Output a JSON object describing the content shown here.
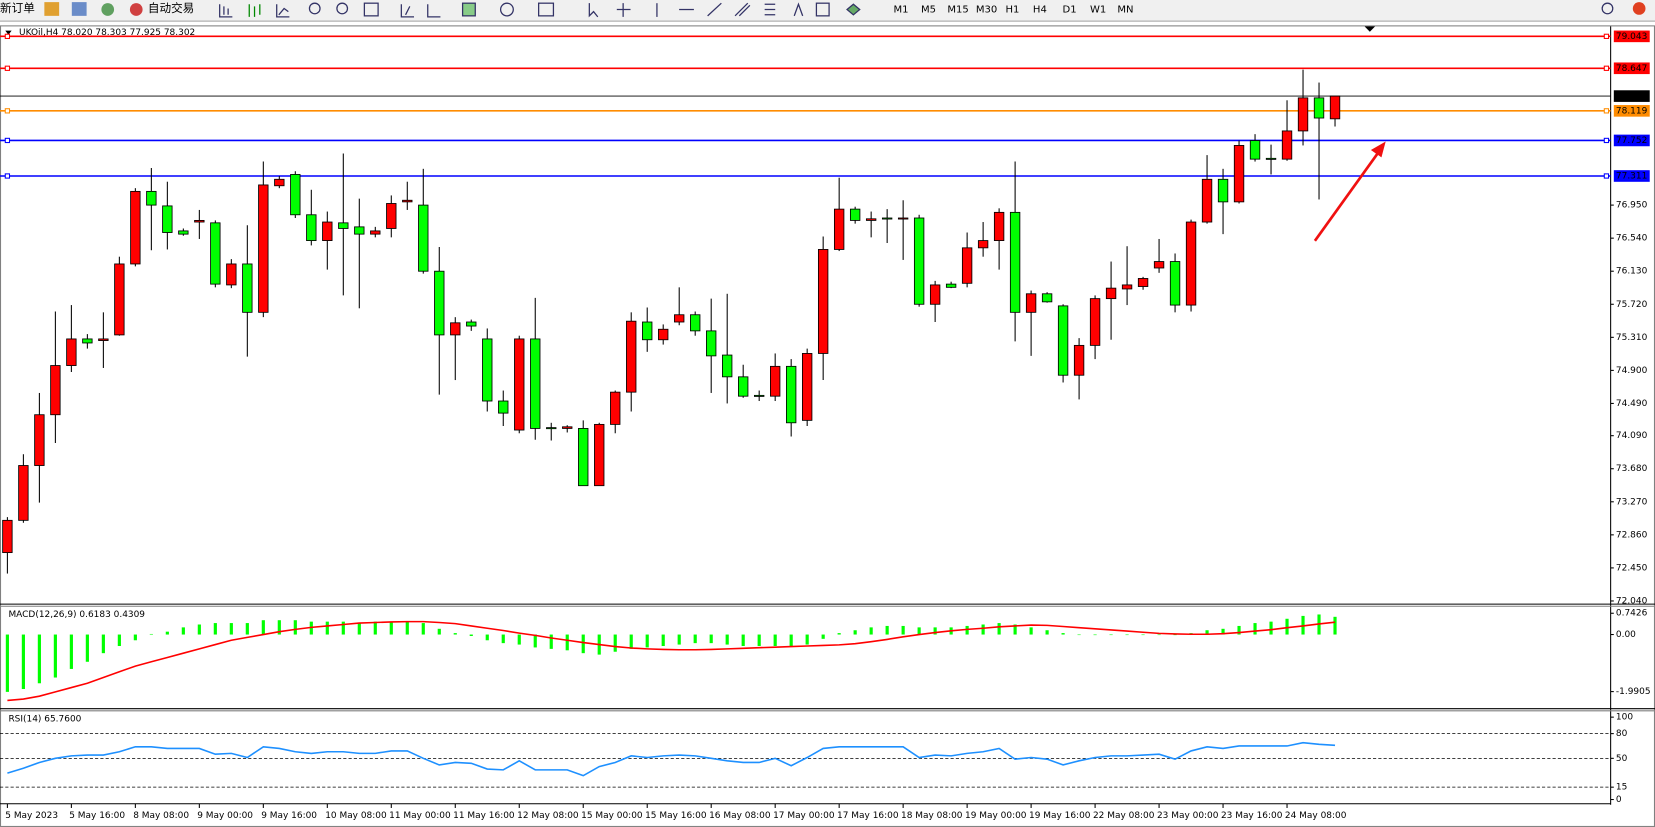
{
  "toolbar": {
    "new_order": "新订单",
    "auto_trading": "自动交易",
    "timeframes": [
      "M1",
      "M5",
      "M15",
      "M30",
      "H1",
      "H4",
      "D1",
      "W1",
      "MN"
    ]
  },
  "chart_data": [
    {
      "type": "candlestick",
      "title": "UKOil,H4  78.020 78.303 77.925 78.302",
      "categories": [
        "5 May 2023",
        null,
        null,
        null,
        "5 May 16:00",
        null,
        null,
        null,
        "8 May 08:00",
        null,
        null,
        null,
        "9 May 00:00",
        null,
        null,
        null,
        "9 May 16:00",
        null,
        null,
        null,
        "10 May 08:00",
        null,
        null,
        null,
        "11 May 00:00",
        null,
        null,
        null,
        "11 May 16:00",
        null,
        null,
        null,
        "12 May 08:00",
        null,
        null,
        null,
        "15 May 00:00",
        null,
        null,
        null,
        "15 May 16:00",
        null,
        null,
        null,
        "16 May 08:00",
        null,
        null,
        null,
        "17 May 00:00",
        null,
        null,
        null,
        "17 May 16:00",
        null,
        null,
        null,
        "18 May 08:00",
        null,
        null,
        null,
        "19 May 00:00",
        null,
        null,
        null,
        "19 May 16:00",
        null,
        null,
        null,
        "22 May 08:00",
        null,
        null,
        null,
        "23 May 00:00",
        null,
        null,
        null,
        "23 May 16:00",
        null,
        null,
        null,
        "24 May 08:00",
        null,
        null,
        null
      ],
      "open": [
        72.64,
        73.04,
        73.72,
        74.35,
        74.96,
        75.29,
        75.27,
        75.34,
        76.22,
        77.12,
        76.94,
        76.63,
        76.74,
        76.73,
        75.96,
        76.22,
        75.62,
        77.19,
        77.33,
        76.83,
        76.51,
        76.73,
        76.68,
        76.59,
        76.66,
        76.99,
        76.95,
        76.13,
        75.34,
        75.5,
        75.29,
        74.52,
        74.16,
        75.29,
        74.19,
        74.18,
        74.18,
        73.47,
        74.23,
        74.63,
        75.5,
        75.28,
        75.5,
        75.59,
        75.39,
        75.09,
        74.82,
        74.59,
        74.58,
        74.95,
        74.28,
        75.11,
        76.4,
        76.9,
        76.76,
        76.79,
        76.78,
        76.79,
        75.72,
        75.97,
        75.98,
        76.42,
        76.51,
        76.86,
        75.62,
        75.85,
        75.7,
        74.84,
        75.21,
        75.79,
        75.91,
        75.94,
        76.17,
        76.25,
        75.71,
        76.74,
        77.27,
        76.99,
        77.75,
        77.53,
        77.52,
        77.87,
        78.28,
        78.02
      ],
      "high": [
        73.08,
        73.86,
        74.62,
        75.63,
        75.71,
        75.35,
        75.62,
        76.31,
        77.16,
        77.41,
        77.24,
        76.66,
        76.89,
        76.76,
        76.28,
        76.7,
        77.49,
        77.31,
        77.37,
        77.14,
        76.87,
        77.59,
        77.03,
        76.68,
        77.07,
        77.24,
        77.4,
        76.43,
        75.56,
        75.53,
        75.42,
        74.65,
        75.33,
        75.8,
        74.25,
        74.22,
        74.28,
        74.25,
        74.65,
        75.62,
        75.68,
        75.47,
        75.93,
        75.63,
        75.79,
        75.85,
        74.97,
        74.65,
        75.11,
        75.04,
        75.17,
        76.56,
        77.29,
        76.93,
        76.87,
        76.9,
        77.01,
        76.83,
        76.01,
        76.0,
        76.61,
        76.74,
        76.91,
        77.49,
        75.89,
        75.87,
        75.72,
        75.3,
        75.83,
        76.25,
        76.44,
        76.06,
        76.53,
        76.35,
        76.77,
        77.57,
        77.4,
        77.75,
        77.83,
        77.7,
        78.25,
        78.63,
        78.47,
        78.303
      ],
      "low": [
        72.38,
        73.01,
        73.26,
        74.0,
        74.88,
        75.17,
        74.93,
        75.33,
        76.19,
        76.39,
        76.4,
        76.57,
        76.53,
        75.93,
        75.92,
        75.07,
        75.56,
        77.16,
        76.79,
        76.45,
        76.15,
        75.83,
        75.67,
        76.55,
        76.55,
        76.89,
        76.1,
        74.6,
        74.78,
        75.39,
        74.39,
        74.21,
        74.12,
        74.04,
        74.03,
        74.13,
        73.47,
        73.47,
        74.12,
        74.39,
        75.13,
        75.22,
        75.46,
        75.33,
        74.62,
        74.49,
        74.56,
        74.52,
        74.52,
        74.08,
        74.21,
        74.78,
        76.38,
        76.72,
        76.55,
        76.48,
        76.27,
        75.69,
        75.5,
        75.92,
        75.93,
        76.31,
        76.15,
        75.26,
        75.08,
        75.74,
        74.75,
        74.54,
        75.04,
        75.28,
        75.71,
        75.9,
        76.11,
        75.62,
        75.63,
        76.72,
        76.59,
        76.97,
        77.49,
        77.33,
        77.5,
        77.69,
        77.02,
        77.925
      ],
      "close": [
        73.04,
        73.72,
        74.35,
        74.96,
        75.29,
        75.24,
        75.29,
        76.22,
        77.12,
        76.95,
        76.61,
        76.59,
        76.76,
        75.97,
        76.22,
        75.62,
        77.2,
        77.27,
        76.83,
        76.51,
        76.74,
        76.66,
        76.59,
        76.63,
        76.97,
        77.01,
        76.13,
        75.34,
        75.49,
        75.45,
        74.52,
        74.37,
        75.29,
        74.18,
        74.18,
        74.2,
        73.47,
        74.23,
        74.63,
        75.51,
        75.28,
        75.41,
        75.59,
        75.39,
        75.08,
        74.82,
        74.58,
        74.58,
        74.95,
        74.25,
        75.11,
        76.4,
        76.9,
        76.76,
        76.78,
        76.78,
        76.79,
        75.72,
        75.96,
        75.93,
        76.42,
        76.51,
        76.86,
        75.62,
        75.85,
        75.75,
        74.84,
        75.21,
        75.79,
        75.92,
        75.96,
        76.04,
        76.25,
        75.71,
        76.74,
        77.27,
        76.99,
        77.69,
        77.52,
        77.52,
        77.87,
        78.28,
        78.03,
        78.302
      ],
      "up_color": "#ff0000",
      "down_color": "#00ff00",
      "ylim": [
        72.04,
        79.14
      ],
      "yticks": [
        {
          "value": 76.95,
          "label": "76.950"
        },
        {
          "value": 76.54,
          "label": "76.540"
        },
        {
          "value": 76.13,
          "label": "76.130"
        },
        {
          "value": 75.72,
          "label": "75.720"
        },
        {
          "value": 75.31,
          "label": "75.310"
        },
        {
          "value": 74.9,
          "label": "74.900"
        },
        {
          "value": 74.49,
          "label": "74.490"
        },
        {
          "value": 74.09,
          "label": "74.090"
        },
        {
          "value": 73.68,
          "label": "73.680"
        },
        {
          "value": 73.27,
          "label": "73.270"
        },
        {
          "value": 72.86,
          "label": "72.860"
        },
        {
          "value": 72.45,
          "label": "72.450"
        },
        {
          "value": 72.04,
          "label": "72.040"
        }
      ],
      "levels": [
        {
          "value": 79.043,
          "color": "#ff0000"
        },
        {
          "value": 78.647,
          "color": "#ff0000"
        },
        {
          "value": 78.119,
          "color": "#ff8c00"
        },
        {
          "value": 77.752,
          "color": "#0000ff"
        },
        {
          "value": 77.311,
          "color": "#0000ff"
        }
      ],
      "current_price": 78.302
    },
    {
      "type": "macd",
      "title": "MACD(12,26,9) 0.6183 0.4309",
      "series": [
        {
          "color": "#00ff00",
          "style": "bar",
          "values": [
            -2.0,
            -1.9,
            -1.7,
            -1.5,
            -1.2,
            -0.95,
            -0.65,
            -0.4,
            -0.2,
            0.02,
            0.1,
            0.25,
            0.35,
            0.4,
            0.4,
            0.4,
            0.5,
            0.5,
            0.5,
            0.45,
            0.45,
            0.45,
            0.42,
            0.45,
            0.45,
            0.45,
            0.4,
            0.2,
            0.05,
            -0.05,
            -0.2,
            -0.3,
            -0.35,
            -0.45,
            -0.5,
            -0.55,
            -0.65,
            -0.7,
            -0.6,
            -0.5,
            -0.45,
            -0.4,
            -0.35,
            -0.3,
            -0.3,
            -0.35,
            -0.4,
            -0.4,
            -0.4,
            -0.42,
            -0.35,
            -0.15,
            0.05,
            0.15,
            0.25,
            0.3,
            0.3,
            0.25,
            0.25,
            0.25,
            0.3,
            0.35,
            0.4,
            0.35,
            0.25,
            0.15,
            0.05,
            0,
            -0.02,
            0,
            0,
            0,
            0,
            -0.02,
            0.05,
            0.15,
            0.2,
            0.3,
            0.4,
            0.45,
            0.55,
            0.65,
            0.7,
            0.6183
          ]
        },
        {
          "color": "#ff0000",
          "style": "line",
          "values": [
            -2.3,
            -2.25,
            -2.15,
            -2.0,
            -1.85,
            -1.7,
            -1.5,
            -1.3,
            -1.1,
            -0.95,
            -0.8,
            -0.65,
            -0.5,
            -0.35,
            -0.2,
            -0.1,
            0.0,
            0.1,
            0.18,
            0.25,
            0.3,
            0.35,
            0.4,
            0.42,
            0.44,
            0.45,
            0.45,
            0.42,
            0.38,
            0.3,
            0.22,
            0.14,
            0.05,
            -0.03,
            -0.12,
            -0.2,
            -0.28,
            -0.35,
            -0.42,
            -0.47,
            -0.5,
            -0.52,
            -0.53,
            -0.53,
            -0.52,
            -0.5,
            -0.48,
            -0.46,
            -0.44,
            -0.42,
            -0.4,
            -0.38,
            -0.36,
            -0.32,
            -0.25,
            -0.17,
            -0.08,
            0.0,
            0.07,
            0.13,
            0.18,
            0.22,
            0.27,
            0.3,
            0.33,
            0.32,
            0.28,
            0.24,
            0.2,
            0.16,
            0.12,
            0.08,
            0.04,
            0.02,
            0.01,
            0.01,
            0.03,
            0.07,
            0.12,
            0.17,
            0.24,
            0.3,
            0.37,
            0.4309
          ]
        }
      ],
      "ylim": [
        -2.55,
        0.95
      ],
      "yticks": [
        0.7426,
        {
          "value": 0,
          "label": "0.00"
        },
        -1.9905
      ]
    },
    {
      "type": "rsi",
      "title": "RSI(14) 65.7600",
      "series": [
        {
          "color": "#1e90ff",
          "style": "line",
          "values": [
            32,
            38,
            45,
            50,
            53,
            54,
            54,
            58,
            64,
            64,
            62,
            62,
            62,
            55,
            56,
            51,
            64,
            62,
            58,
            56,
            58,
            58,
            56,
            56,
            59,
            59,
            50,
            42,
            45,
            44,
            37,
            36,
            47,
            36,
            36,
            36,
            29,
            40,
            45,
            53,
            51,
            53,
            54,
            53,
            50,
            47,
            45,
            45,
            50,
            41,
            51,
            62,
            64,
            64,
            64,
            64,
            64,
            51,
            54,
            53,
            56,
            58,
            62,
            49,
            51,
            49,
            42,
            47,
            51,
            53,
            53,
            54,
            55,
            49,
            59,
            64,
            62,
            65,
            65,
            65,
            65,
            69,
            67,
            65.76
          ]
        }
      ],
      "ylim": [
        0,
        100
      ],
      "yticks": [
        100,
        80,
        50,
        15,
        0
      ]
    }
  ]
}
